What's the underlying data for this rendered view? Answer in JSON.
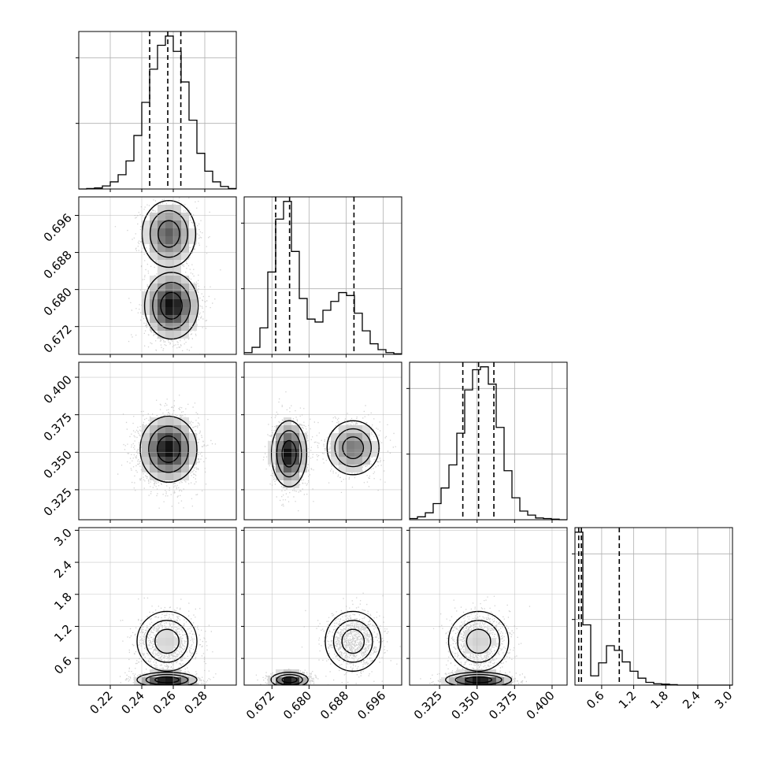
{
  "chart_data": {
    "type": "corner",
    "parameters": [
      {
        "range": [
          0.2,
          0.3
        ],
        "ticks": [
          "0.22",
          "0.24",
          "0.26",
          "0.28"
        ],
        "tick_values": [
          0.22,
          0.24,
          0.26,
          0.28
        ]
      },
      {
        "range": [
          0.666,
          0.7
        ],
        "ticks": [
          "0.672",
          "0.680",
          "0.688",
          "0.696"
        ],
        "tick_values": [
          0.672,
          0.68,
          0.688,
          0.696
        ]
      },
      {
        "range": [
          0.305,
          0.41
        ],
        "ticks": [
          "0.325",
          "0.350",
          "0.375",
          "0.400"
        ],
        "tick_values": [
          0.325,
          0.35,
          0.375,
          0.4
        ]
      },
      {
        "range": [
          0.1,
          3.05
        ],
        "ticks": [
          "0.6",
          "1.2",
          "1.8",
          "2.4",
          "3.0"
        ],
        "tick_values": [
          0.6,
          1.2,
          1.8,
          2.4,
          3.0
        ]
      }
    ],
    "histograms": [
      {
        "bins": [
          0.2,
          0.205,
          0.21,
          0.215,
          0.22,
          0.225,
          0.23,
          0.235,
          0.24,
          0.245,
          0.25,
          0.255,
          0.26,
          0.265,
          0.27,
          0.275,
          0.28,
          0.285,
          0.29,
          0.295,
          0.3
        ],
        "counts": [
          0,
          1,
          2,
          6,
          14,
          28,
          55,
          105,
          170,
          235,
          282,
          300,
          270,
          210,
          135,
          70,
          35,
          14,
          5,
          1
        ],
        "quantiles": [
          0.245,
          0.2565,
          0.2648
        ]
      },
      {
        "bins": [
          0.666,
          0.6677,
          0.6694,
          0.6711,
          0.6728,
          0.6745,
          0.6762,
          0.6779,
          0.6796,
          0.6813,
          0.683,
          0.6847,
          0.6864,
          0.6881,
          0.6898,
          0.6915,
          0.6932,
          0.6949,
          0.6966,
          0.6983,
          0.7
        ],
        "counts": [
          3,
          12,
          45,
          140,
          230,
          260,
          175,
          95,
          60,
          55,
          75,
          90,
          105,
          100,
          70,
          40,
          18,
          8,
          3,
          1
        ],
        "quantiles": [
          0.6728,
          0.6758,
          0.6897
        ]
      },
      {
        "bins": [
          0.305,
          0.31025,
          0.3155,
          0.32075,
          0.326,
          0.33125,
          0.3365,
          0.34175,
          0.347,
          0.35225,
          0.3575,
          0.36275,
          0.368,
          0.37325,
          0.3785,
          0.38375,
          0.389,
          0.39425,
          0.3995,
          0.40475,
          0.41
        ],
        "counts": [
          2,
          5,
          12,
          28,
          55,
          95,
          150,
          225,
          260,
          265,
          235,
          160,
          85,
          38,
          15,
          8,
          3,
          2,
          1,
          0
        ],
        "quantiles": [
          0.3405,
          0.351,
          0.3612
        ]
      },
      {
        "bins": [
          0.1,
          0.2475,
          0.395,
          0.5425,
          0.69,
          0.8375,
          0.985,
          1.1325,
          1.28,
          1.4275,
          1.575,
          1.7225,
          1.87,
          2.0175,
          2.165,
          2.3125,
          2.46,
          2.6075,
          2.755,
          2.9025,
          3.05
        ],
        "counts": [
          330,
          130,
          20,
          48,
          85,
          75,
          50,
          30,
          15,
          6,
          3,
          2,
          1,
          0,
          0,
          0,
          0,
          0,
          0,
          0
        ],
        "quantiles": [
          0.17,
          0.22,
          0.93
        ]
      }
    ],
    "blobs": [
      {
        "pair": [
          1,
          0
        ],
        "modes": [
          {
            "x": 0.2572,
            "y": 0.692,
            "sx": 0.0085,
            "sy": 0.0036,
            "w": 0.4
          },
          {
            "x": 0.2588,
            "y": 0.6765,
            "sx": 0.0085,
            "sy": 0.0036,
            "w": 0.6
          }
        ]
      },
      {
        "pair": [
          2,
          0
        ],
        "modes": [
          {
            "x": 0.257,
            "y": 0.352,
            "sx": 0.009,
            "sy": 0.011,
            "w": 1.0
          }
        ]
      },
      {
        "pair": [
          2,
          1
        ],
        "modes": [
          {
            "x": 0.6757,
            "y": 0.349,
            "sx": 0.0019,
            "sy": 0.011,
            "w": 0.6
          },
          {
            "x": 0.6895,
            "y": 0.353,
            "sx": 0.0028,
            "sy": 0.009,
            "w": 0.4
          }
        ]
      },
      {
        "pair": [
          3,
          0
        ],
        "modes": [
          {
            "x": 0.256,
            "y": 0.2,
            "sx": 0.0095,
            "sy": 0.07,
            "w": 0.6
          },
          {
            "x": 0.256,
            "y": 0.92,
            "sx": 0.0095,
            "sy": 0.28,
            "w": 0.4
          }
        ]
      },
      {
        "pair": [
          3,
          1
        ],
        "modes": [
          {
            "x": 0.6758,
            "y": 0.2,
            "sx": 0.002,
            "sy": 0.07,
            "w": 0.6
          },
          {
            "x": 0.6895,
            "y": 0.92,
            "sx": 0.003,
            "sy": 0.28,
            "w": 0.4
          }
        ]
      },
      {
        "pair": [
          3,
          2
        ],
        "modes": [
          {
            "x": 0.351,
            "y": 0.2,
            "sx": 0.011,
            "sy": 0.07,
            "w": 0.6
          },
          {
            "x": 0.351,
            "y": 0.92,
            "sx": 0.01,
            "sy": 0.28,
            "w": 0.4
          }
        ]
      }
    ],
    "grid": true,
    "colors": {
      "line": "#000000",
      "grid": "#b0b0b0",
      "points": "#000000"
    }
  }
}
